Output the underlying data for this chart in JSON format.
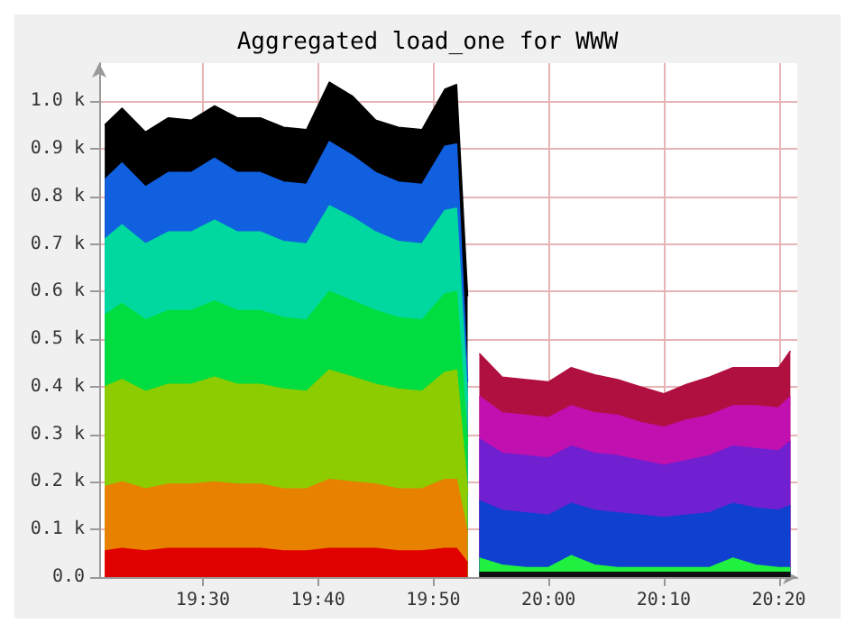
{
  "chart_data": {
    "type": "area",
    "title": "Aggregated load_one for WWW",
    "stacked": true,
    "grid": true,
    "xlim": [
      19.35,
      20.36
    ],
    "xticks": [
      {
        "value": 19.5,
        "label": "19:30"
      },
      {
        "value": 19.6667,
        "label": "19:40"
      },
      {
        "value": 19.8333,
        "label": "19:50"
      },
      {
        "value": 20,
        "label": "20:00"
      },
      {
        "value": 20.1667,
        "label": "20:10"
      },
      {
        "value": 20.3333,
        "label": "20:20"
      }
    ],
    "ylim": [
      0,
      1080
    ],
    "yticks": [
      {
        "value": 0,
        "label": "0.0"
      },
      {
        "value": 100,
        "label": "0.1 k"
      },
      {
        "value": 200,
        "label": "0.2 k"
      },
      {
        "value": 300,
        "label": "0.3 k"
      },
      {
        "value": 400,
        "label": "0.4 k"
      },
      {
        "value": 500,
        "label": "0.5 k"
      },
      {
        "value": 600,
        "label": "0.6 k"
      },
      {
        "value": 700,
        "label": "0.7 k"
      },
      {
        "value": 800,
        "label": "0.8 k"
      },
      {
        "value": 900,
        "label": "0.9 k"
      },
      {
        "value": 1000,
        "label": "1.0 k"
      }
    ],
    "x": [
      19.358,
      19.383,
      19.417,
      19.45,
      19.483,
      19.517,
      19.55,
      19.583,
      19.617,
      19.65,
      19.683,
      19.717,
      19.75,
      19.783,
      19.817,
      19.85,
      19.867,
      19.883,
      19.9,
      19.933,
      19.967,
      20.0,
      20.033,
      20.067,
      20.1,
      20.133,
      20.167,
      20.2,
      20.233,
      20.267,
      20.3,
      20.333,
      20.35
    ],
    "series": [
      {
        "color": "#e00000",
        "values": [
          55,
          60,
          55,
          60,
          60,
          60,
          60,
          60,
          55,
          55,
          60,
          60,
          60,
          55,
          55,
          60,
          60,
          30,
          null,
          null,
          null,
          null,
          null,
          null,
          null,
          null,
          null,
          null,
          null,
          null,
          null,
          null,
          null
        ]
      },
      {
        "color": "#e88000",
        "values": [
          135,
          140,
          130,
          135,
          135,
          140,
          135,
          135,
          130,
          130,
          145,
          140,
          135,
          130,
          130,
          145,
          145,
          60,
          null,
          null,
          null,
          null,
          null,
          null,
          null,
          null,
          null,
          null,
          null,
          null,
          null,
          null,
          null
        ]
      },
      {
        "color": "#8ccc00",
        "values": [
          210,
          215,
          205,
          210,
          210,
          220,
          210,
          210,
          210,
          205,
          230,
          220,
          210,
          210,
          205,
          225,
          230,
          90,
          null,
          null,
          null,
          null,
          null,
          null,
          null,
          null,
          null,
          null,
          null,
          null,
          null,
          null,
          null
        ]
      },
      {
        "color": "#00dd40",
        "values": [
          150,
          160,
          150,
          155,
          155,
          160,
          155,
          155,
          150,
          150,
          165,
          160,
          155,
          150,
          150,
          165,
          165,
          100,
          null,
          null,
          null,
          null,
          null,
          null,
          null,
          null,
          null,
          null,
          null,
          null,
          null,
          null,
          null
        ]
      },
      {
        "color": "#00d8a0",
        "values": [
          160,
          165,
          160,
          165,
          165,
          170,
          165,
          165,
          160,
          160,
          180,
          175,
          165,
          160,
          160,
          175,
          175,
          90,
          null,
          null,
          null,
          null,
          null,
          null,
          null,
          null,
          null,
          null,
          null,
          null,
          null,
          null,
          null
        ]
      },
      {
        "color": "#1060e0",
        "values": [
          125,
          130,
          120,
          125,
          125,
          130,
          125,
          125,
          125,
          125,
          135,
          130,
          125,
          125,
          125,
          135,
          135,
          40,
          null,
          null,
          null,
          null,
          null,
          null,
          null,
          null,
          null,
          null,
          null,
          null,
          null,
          null,
          null
        ]
      },
      {
        "color": "#000000",
        "values": [
          115,
          115,
          115,
          115,
          110,
          110,
          115,
          115,
          115,
          115,
          125,
          125,
          110,
          115,
          115,
          120,
          125,
          180,
          null,
          null,
          null,
          null,
          null,
          null,
          null,
          null,
          null,
          null,
          null,
          null,
          null,
          null,
          null
        ]
      },
      {
        "color": "#101010",
        "values": [
          null,
          null,
          null,
          null,
          null,
          null,
          null,
          null,
          null,
          null,
          null,
          null,
          null,
          null,
          null,
          null,
          null,
          null,
          10,
          10,
          10,
          10,
          10,
          10,
          10,
          10,
          10,
          10,
          10,
          10,
          10,
          10,
          10
        ]
      },
      {
        "color": "#20f040",
        "values": [
          null,
          null,
          null,
          null,
          null,
          null,
          null,
          null,
          null,
          null,
          null,
          null,
          null,
          null,
          null,
          null,
          null,
          null,
          30,
          15,
          10,
          10,
          35,
          15,
          10,
          10,
          10,
          10,
          10,
          30,
          15,
          10,
          10
        ]
      },
      {
        "color": "#1040d0",
        "values": [
          null,
          null,
          null,
          null,
          null,
          null,
          null,
          null,
          null,
          null,
          null,
          null,
          null,
          null,
          null,
          null,
          null,
          null,
          120,
          115,
          115,
          110,
          110,
          115,
          115,
          110,
          105,
          110,
          115,
          115,
          120,
          120,
          130
        ]
      },
      {
        "color": "#7020d0",
        "values": [
          null,
          null,
          null,
          null,
          null,
          null,
          null,
          null,
          null,
          null,
          null,
          null,
          null,
          null,
          null,
          null,
          null,
          null,
          130,
          120,
          120,
          120,
          120,
          120,
          120,
          115,
          110,
          115,
          120,
          120,
          125,
          125,
          135
        ]
      },
      {
        "color": "#c010b0",
        "values": [
          null,
          null,
          null,
          null,
          null,
          null,
          null,
          null,
          null,
          null,
          null,
          null,
          null,
          null,
          null,
          null,
          null,
          null,
          90,
          85,
          85,
          85,
          85,
          85,
          85,
          80,
          80,
          85,
          85,
          85,
          90,
          90,
          95
        ]
      },
      {
        "color": "#b01040",
        "values": [
          null,
          null,
          null,
          null,
          null,
          null,
          null,
          null,
          null,
          null,
          null,
          null,
          null,
          null,
          null,
          null,
          null,
          null,
          90,
          75,
          75,
          75,
          80,
          80,
          75,
          75,
          70,
          75,
          80,
          80,
          80,
          85,
          95
        ]
      }
    ]
  }
}
